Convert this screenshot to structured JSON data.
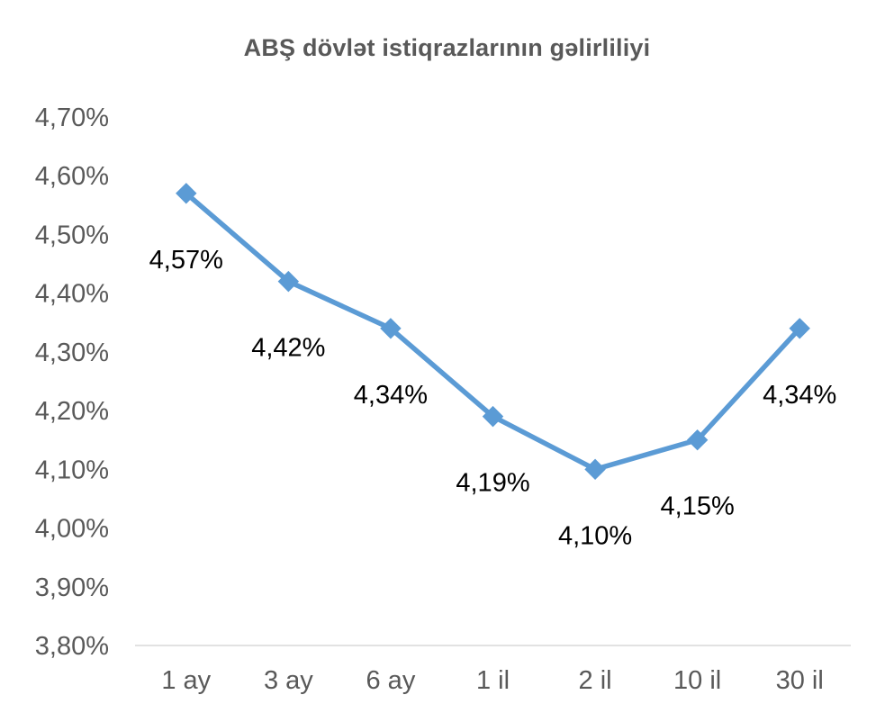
{
  "chart_data": {
    "type": "line",
    "title": "ABŞ dövlət istiqrazlarının gəlirliliyi",
    "xlabel": "",
    "ylabel": "",
    "categories": [
      "1 ay",
      "3 ay",
      "6 ay",
      "1 il",
      "2 il",
      "10 il",
      "30 il"
    ],
    "series": [
      {
        "values": [
          4.57,
          4.42,
          4.34,
          4.19,
          4.1,
          4.15,
          4.34
        ],
        "data_labels": [
          "4,57%",
          "4,42%",
          "4,34%",
          "4,19%",
          "4,10%",
          "4,15%",
          "4,34%"
        ],
        "color": "#5B9BD5",
        "marker": "diamond"
      }
    ],
    "ylim": [
      3.8,
      4.7
    ],
    "yticks": [
      3.8,
      3.9,
      4.0,
      4.1,
      4.2,
      4.3,
      4.4,
      4.5,
      4.6,
      4.7
    ],
    "ytick_labels": [
      "3,80%",
      "3,90%",
      "4,00%",
      "4,10%",
      "4,20%",
      "4,30%",
      "4,40%",
      "4,50%",
      "4,60%",
      "4,70%"
    ],
    "grid": false,
    "legend": "none",
    "colors": {
      "line": "#5B9BD5",
      "text": "#595959",
      "axis": "#D9D9D9",
      "data_label": "#000000"
    }
  }
}
